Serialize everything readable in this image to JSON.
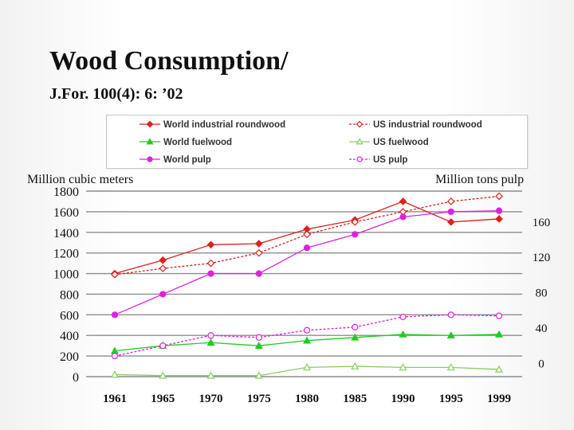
{
  "slide": {
    "title": "Wood Consumption/",
    "subtitle": "J.For. 100(4): 6: ’02",
    "left_axis_unit": "Million cubic meters",
    "right_axis_unit": "Million tons pulp"
  },
  "chart_data": {
    "type": "line",
    "title": "",
    "x": [
      "1961",
      "1965",
      "1970",
      "1975",
      "1980",
      "1985",
      "1990",
      "1995",
      "1999"
    ],
    "xlabel": "",
    "ylabel": "Million cubic meters",
    "ylim": [
      0,
      1800
    ],
    "yticks": [
      "0",
      "200",
      "400",
      "600",
      "800",
      "1000",
      "1200",
      "1400",
      "1600",
      "1800"
    ],
    "y2label": "Million tons pulp",
    "y2lim": [
      -15,
      195
    ],
    "y2ticks": [
      "0",
      "40",
      "80",
      "120",
      "160"
    ],
    "grid": true,
    "legend_position": "top",
    "series": [
      {
        "name": "World industrial roundwood",
        "axis": "left",
        "color": "#dd2020",
        "dash": false,
        "marker": "diamond-filled",
        "values": [
          1000,
          1130,
          1280,
          1290,
          1430,
          1520,
          1700,
          1500,
          1530
        ]
      },
      {
        "name": "US industrial roundwood",
        "axis": "left",
        "color": "#dd2020",
        "dash": true,
        "marker": "diamond-open",
        "values": [
          990,
          1050,
          1100,
          1200,
          1380,
          1500,
          1600,
          1700,
          1750
        ]
      },
      {
        "name": "World fuelwood",
        "axis": "left",
        "color": "#22cc22",
        "dash": false,
        "marker": "triangle-filled",
        "values": [
          250,
          300,
          330,
          300,
          350,
          380,
          410,
          400,
          410
        ]
      },
      {
        "name": "US fuelwood",
        "axis": "left",
        "color": "#88cc66",
        "dash": false,
        "marker": "triangle-open",
        "values": [
          20,
          10,
          10,
          10,
          90,
          100,
          90,
          90,
          70
        ]
      },
      {
        "name": "World pulp",
        "axis": "left",
        "color": "#dd22dd",
        "dash": false,
        "marker": "circle-filled",
        "values": [
          600,
          800,
          1000,
          1000,
          1250,
          1380,
          1550,
          1600,
          1610
        ]
      },
      {
        "name": "US pulp",
        "axis": "left",
        "color": "#dd22dd",
        "dash": true,
        "marker": "circle-open",
        "values": [
          200,
          300,
          400,
          380,
          450,
          480,
          580,
          600,
          590
        ]
      }
    ]
  }
}
